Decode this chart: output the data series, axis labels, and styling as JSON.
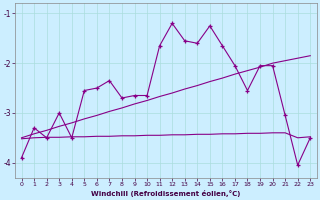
{
  "xlabel": "Windchill (Refroidissement éolien,°C)",
  "background_color": "#cceeff",
  "grid_color": "#aadddd",
  "line_color": "#880088",
  "x_values": [
    0,
    1,
    2,
    3,
    4,
    5,
    6,
    7,
    8,
    9,
    10,
    11,
    12,
    13,
    14,
    15,
    16,
    17,
    18,
    19,
    20,
    21,
    22,
    23
  ],
  "main_y": [
    -3.9,
    -3.3,
    -3.5,
    -3.0,
    -3.5,
    -2.55,
    -2.5,
    -2.35,
    -2.7,
    -2.65,
    -2.65,
    -1.65,
    -1.2,
    -1.55,
    -1.6,
    -1.25,
    -1.65,
    -2.05,
    -2.55,
    -2.05,
    -2.05,
    -3.05,
    -4.05,
    -3.5
  ],
  "band_upper": [
    -3.5,
    -3.42,
    -3.35,
    -3.27,
    -3.2,
    -3.12,
    -3.05,
    -2.97,
    -2.9,
    -2.82,
    -2.75,
    -2.67,
    -2.6,
    -2.52,
    -2.45,
    -2.37,
    -2.3,
    -2.22,
    -2.15,
    -2.08,
    -2.0,
    -1.95,
    -1.9,
    -1.85
  ],
  "band_lower": [
    -3.52,
    -3.5,
    -3.49,
    -3.49,
    -3.48,
    -3.48,
    -3.47,
    -3.47,
    -3.46,
    -3.46,
    -3.45,
    -3.45,
    -3.44,
    -3.44,
    -3.43,
    -3.43,
    -3.42,
    -3.42,
    -3.41,
    -3.41,
    -3.4,
    -3.4,
    -3.5,
    -3.48
  ],
  "ylim": [
    -4.3,
    -0.8
  ],
  "xlim": [
    -0.5,
    23.5
  ],
  "yticks": [
    -4,
    -3,
    -2,
    -1
  ],
  "xticks": [
    0,
    1,
    2,
    3,
    4,
    5,
    6,
    7,
    8,
    9,
    10,
    11,
    12,
    13,
    14,
    15,
    16,
    17,
    18,
    19,
    20,
    21,
    22,
    23
  ]
}
